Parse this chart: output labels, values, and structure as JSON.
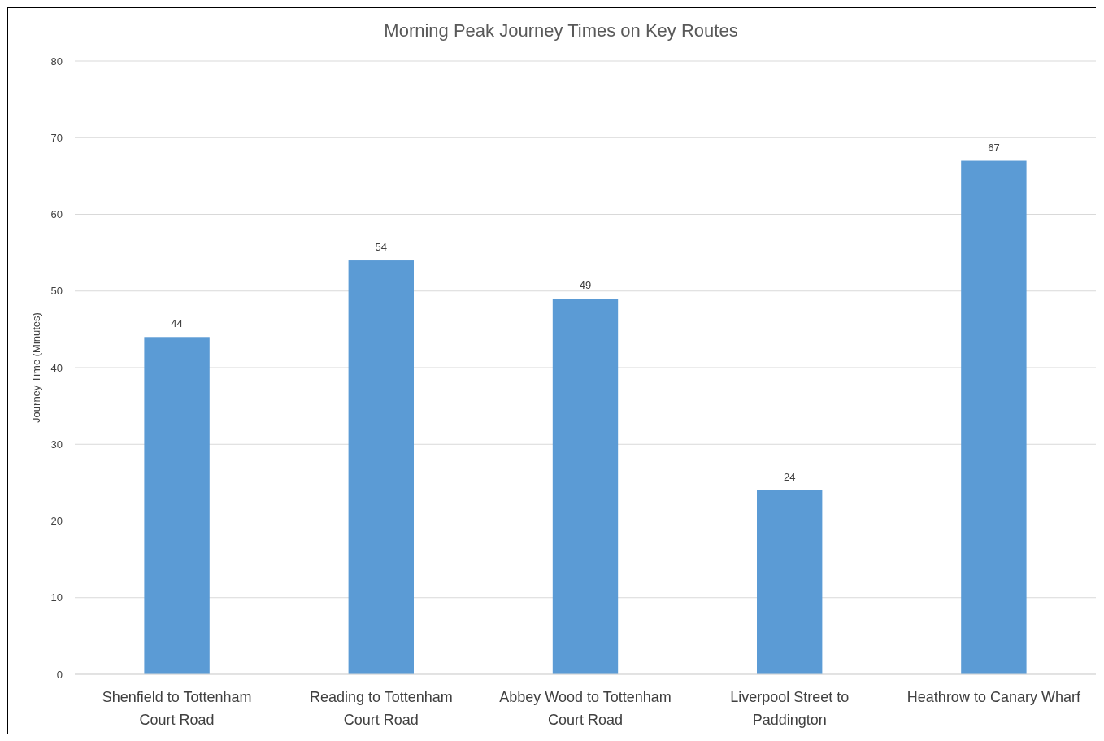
{
  "chart_data": {
    "type": "bar",
    "title": "Morning Peak Journey Times on Key Routes",
    "ylabel": "Journey Time (Minutes)",
    "categories": [
      "Shenfield to Tottenham Court Road",
      "Reading to Tottenham Court Road",
      "Abbey Wood to Tottenham Court Road",
      "Liverpool Street to Paddington",
      "Heathrow to Canary Wharf"
    ],
    "values": [
      44,
      54,
      49,
      24,
      67
    ],
    "color": "#5b9bd5",
    "ylim": [
      0,
      80
    ],
    "yticks": [
      0,
      10,
      20,
      30,
      40,
      50,
      60,
      70,
      80
    ],
    "grid": "y",
    "data_labels": true
  }
}
